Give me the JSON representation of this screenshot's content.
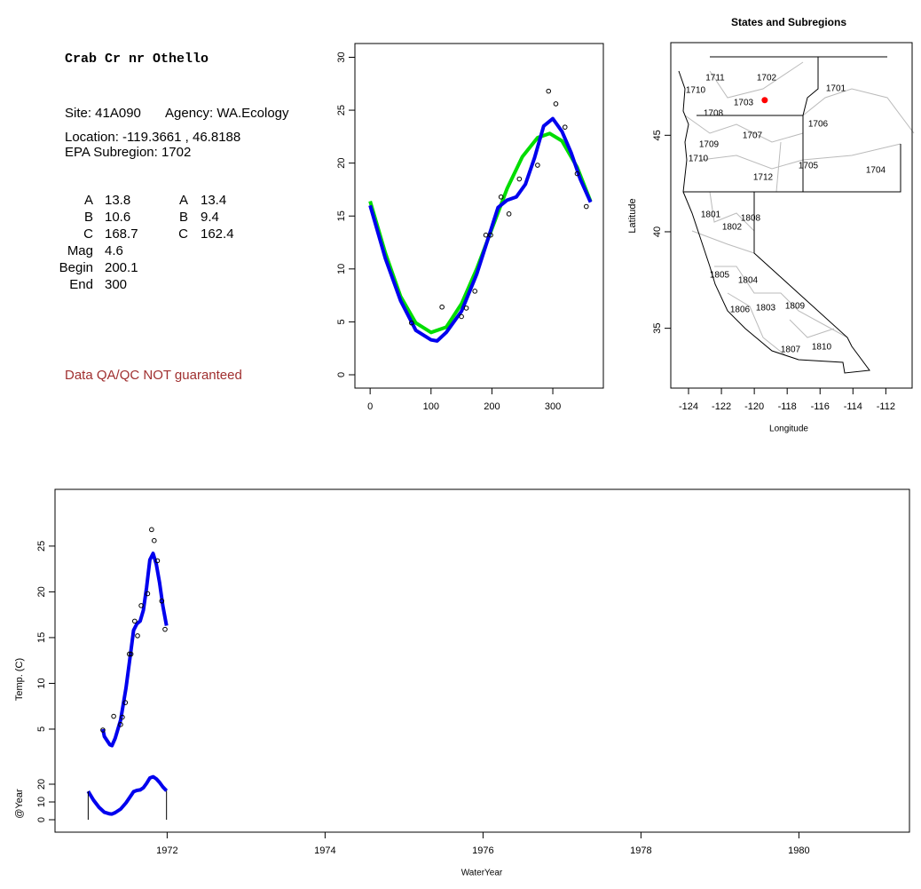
{
  "info": {
    "title": "Crab Cr nr Othello",
    "site": "Site: 41A090",
    "agency": "Agency: WA.Ecology",
    "location": "Location: -119.3661 , 46.8188",
    "subregion": "EPA Subregion: 1702",
    "params": [
      [
        "A",
        "13.8",
        "A",
        "13.4"
      ],
      [
        "B",
        "10.6",
        "B",
        "9.4"
      ],
      [
        "C",
        "168.7",
        "C",
        "162.4"
      ],
      [
        "Mag",
        "4.6"
      ],
      [
        "Begin",
        "200.1"
      ],
      [
        "End",
        "300"
      ]
    ],
    "disclaimer": "Data QA/QC NOT guaranteed"
  },
  "chart_data": [
    {
      "type": "scatter",
      "xlim": [
        -25,
        383
      ],
      "ylim": [
        -1.26,
        31.3
      ],
      "xticks": [
        0,
        100,
        200,
        300
      ],
      "yticks": [
        0,
        5,
        10,
        15,
        20,
        25,
        30
      ],
      "points": {
        "x": [
          68,
          118,
          150,
          158,
          172,
          190,
          198,
          215,
          228,
          245,
          275,
          293,
          305,
          320,
          340,
          355
        ],
        "values": [
          4.9,
          6.4,
          5.5,
          6.3,
          7.9,
          13.2,
          13.2,
          16.8,
          15.2,
          18.5,
          19.8,
          26.8,
          25.6,
          23.4,
          19,
          15.9
        ]
      },
      "lines": [
        {
          "color": "#00dd00",
          "x": [
            0,
            25,
            50,
            75,
            100,
            125,
            150,
            175,
            200,
            225,
            250,
            275,
            295,
            315,
            340,
            362
          ],
          "values": [
            16.4,
            11.5,
            7.4,
            4.9,
            4,
            4.5,
            6.7,
            10,
            13.8,
            17.6,
            20.6,
            22.4,
            22.8,
            22.1,
            19.6,
            16.4
          ]
        },
        {
          "color": "#0000ee",
          "x": [
            0,
            25,
            50,
            75,
            100,
            110,
            125,
            150,
            175,
            200,
            210,
            225,
            240,
            255,
            270,
            285,
            300,
            315,
            330,
            345,
            362
          ],
          "values": [
            16,
            11,
            7,
            4.2,
            3.3,
            3.2,
            4,
            6,
            9.5,
            14,
            15.8,
            16.5,
            16.8,
            18,
            20.5,
            23.5,
            24.2,
            23,
            21,
            18.5,
            16.3
          ]
        }
      ]
    },
    {
      "type": "map",
      "title": "States and Subregions",
      "xlabel": "Longitude",
      "ylabel": "Latitude",
      "xlim": [
        -125.08,
        -110.4
      ],
      "ylim": [
        31.9,
        49.8
      ],
      "xticks": [
        -124,
        -122,
        -120,
        -118,
        -116,
        -114,
        -112
      ],
      "yticks": [
        35,
        40,
        45
      ],
      "site": {
        "x": -119.3661,
        "y": 46.8188,
        "color": "#ff0000"
      },
      "regions": [
        "1711",
        "1702",
        "1701",
        "1710",
        "1703",
        "1708",
        "1706",
        "1707",
        "1709",
        "1710",
        "1705",
        "1704",
        "1712",
        "1801",
        "1808",
        "1802",
        "1805",
        "1804",
        "1809",
        "1806",
        "1803",
        "1807",
        "1810"
      ]
    },
    {
      "type": "timeseries",
      "xlabel": "WaterYear",
      "ylabel": "Temp. (C)",
      "y2label": "@Year",
      "xlim": [
        1970.58,
        1981.4
      ],
      "ylim": [
        -6.26,
        31.2
      ],
      "y2lim": [
        -7,
        186
      ],
      "xticks": [
        1972,
        1974,
        1976,
        1978,
        1980
      ],
      "yticks": [
        5,
        10,
        15,
        20,
        25
      ],
      "y2ticks": [
        0,
        10,
        20
      ],
      "points": {
        "x": [
          1971.186,
          1971.323,
          1971.411,
          1971.433,
          1971.471,
          1971.521,
          1971.542,
          1971.589,
          1971.625,
          1971.671,
          1971.753,
          1971.803,
          1971.836,
          1971.877,
          1971.932,
          1971.973
        ],
        "values": [
          4.9,
          6.4,
          5.5,
          6.3,
          7.9,
          13.2,
          13.2,
          16.8,
          15.2,
          18.5,
          19.8,
          26.8,
          25.6,
          23.4,
          19,
          15.9
        ]
      },
      "lines": [
        {
          "color": "#0000ee",
          "x": [
            1971.186,
            1971.205,
            1971.274,
            1971.301,
            1971.342,
            1971.411,
            1971.479,
            1971.548,
            1971.575,
            1971.616,
            1971.658,
            1971.699,
            1971.74,
            1971.781,
            1971.822,
            1971.863,
            1971.904,
            1971.945,
            1971.992
          ],
          "values": [
            5,
            4.2,
            3.3,
            3.2,
            4,
            6,
            9.5,
            14,
            15.8,
            16.5,
            16.8,
            18,
            20.5,
            23.5,
            24.2,
            23,
            21,
            18.5,
            16.3
          ]
        },
        {
          "color": "#0000ee",
          "axis": "y2",
          "x": [
            1971,
            1971.068,
            1971.137,
            1971.205,
            1971.274,
            1971.301,
            1971.342,
            1971.411,
            1971.479,
            1971.548,
            1971.575,
            1971.616,
            1971.658,
            1971.699,
            1971.74,
            1971.781,
            1971.822,
            1971.863,
            1971.904,
            1971.945,
            1971.992
          ],
          "values": [
            16,
            11,
            7,
            4.2,
            3.3,
            3.2,
            4,
            6,
            9.5,
            14,
            15.8,
            16.5,
            16.8,
            18,
            20.5,
            23.5,
            24.2,
            23,
            21,
            18.5,
            16.3
          ]
        }
      ]
    }
  ]
}
